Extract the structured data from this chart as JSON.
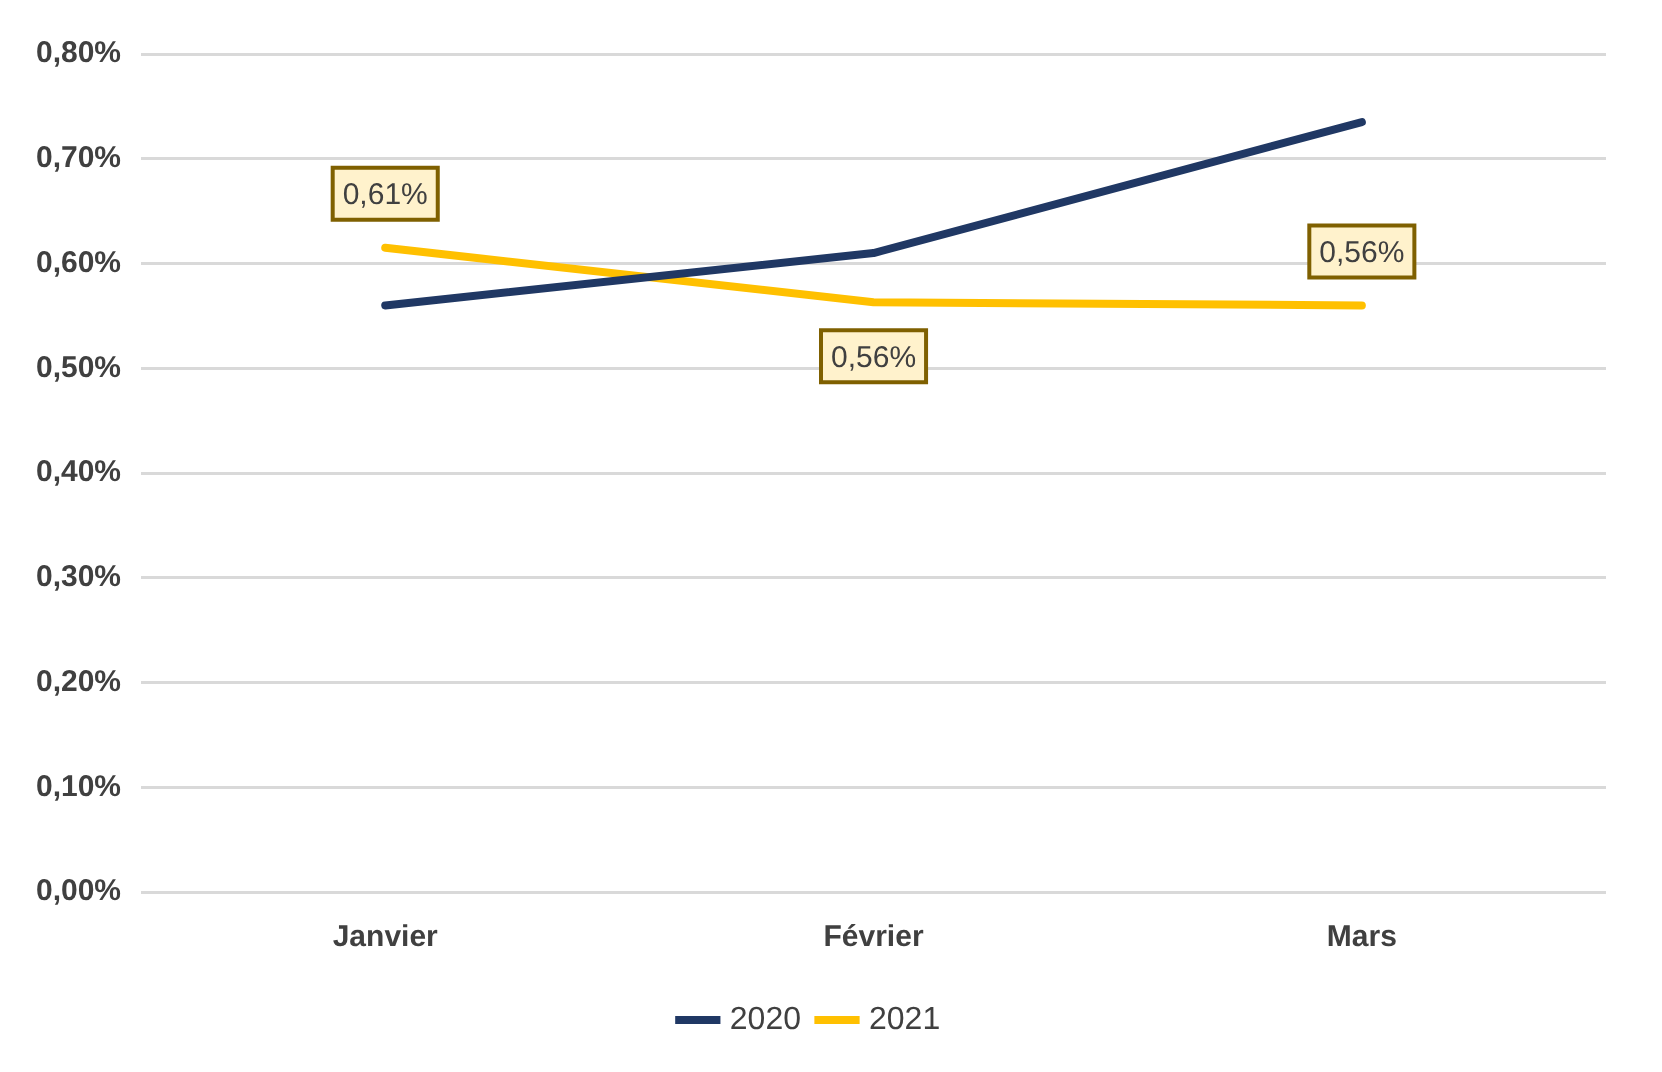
{
  "chart_data": {
    "type": "line",
    "categories": [
      "Janvier",
      "Février",
      "Mars"
    ],
    "series": [
      {
        "name": "2020",
        "color": "#203864",
        "values": [
          0.56,
          0.61,
          0.735
        ]
      },
      {
        "name": "2021",
        "color": "#ffc000",
        "values": [
          0.615,
          0.563,
          0.56
        ],
        "value_labels": [
          "0,61%",
          "0,56%",
          "0,56%"
        ]
      }
    ],
    "ylim": [
      0,
      0.8
    ],
    "yticks": [
      {
        "value": 0,
        "label": "0,00%"
      },
      {
        "value": 0.1,
        "label": "0,10%"
      },
      {
        "value": 0.2,
        "label": "0,20%"
      },
      {
        "value": 0.3,
        "label": "0,30%"
      },
      {
        "value": 0.4,
        "label": "0,40%"
      },
      {
        "value": 0.5,
        "label": "0,50%"
      },
      {
        "value": 0.6,
        "label": "0,60%"
      },
      {
        "value": 0.7,
        "label": "0,70%"
      },
      {
        "value": 0.8,
        "label": "0,80%"
      }
    ],
    "grid": "y",
    "legend": "bottom",
    "marker": "none",
    "line_style": "solid"
  }
}
